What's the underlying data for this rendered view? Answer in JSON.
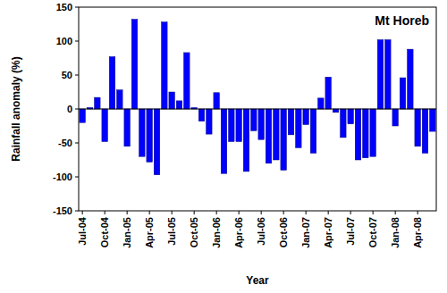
{
  "chart_data": {
    "type": "bar",
    "title": "Mt Horeb",
    "x_label": "Year",
    "y_label": "Rainfall anomaly (%)",
    "categories": [
      "Jul-04",
      null,
      null,
      "Oct-04",
      null,
      null,
      "Jan-05",
      null,
      null,
      "Apr-05",
      null,
      null,
      "Jul-05",
      null,
      null,
      "Oct-05",
      null,
      null,
      "Jan-06",
      null,
      null,
      "Apr-06",
      null,
      null,
      "Jul-06",
      null,
      null,
      "Oct-06",
      null,
      null,
      "Jan-07",
      null,
      null,
      "Apr-07",
      null,
      null,
      "Jul-07",
      null,
      null,
      "Oct-07",
      null,
      null,
      "Jan-08",
      null,
      null,
      "Apr-08",
      null,
      null
    ],
    "values": [
      -20,
      2,
      17,
      -48,
      77,
      28,
      -55,
      132,
      -70,
      -78,
      -97,
      128,
      25,
      12,
      83,
      2,
      -18,
      -37,
      24,
      -95,
      -48,
      -48,
      -92,
      -32,
      -45,
      -80,
      -75,
      -90,
      -38,
      -57,
      -23,
      -65,
      16,
      47,
      -5,
      -42,
      -22,
      -75,
      -72,
      -70,
      102,
      102,
      -25,
      46,
      88,
      -55,
      -65,
      -33
    ],
    "color": "#0000ff",
    "ylim": [
      -150,
      150
    ],
    "yticks": [
      -150,
      -100,
      -50,
      0,
      50,
      100,
      150
    ],
    "grid": false
  }
}
